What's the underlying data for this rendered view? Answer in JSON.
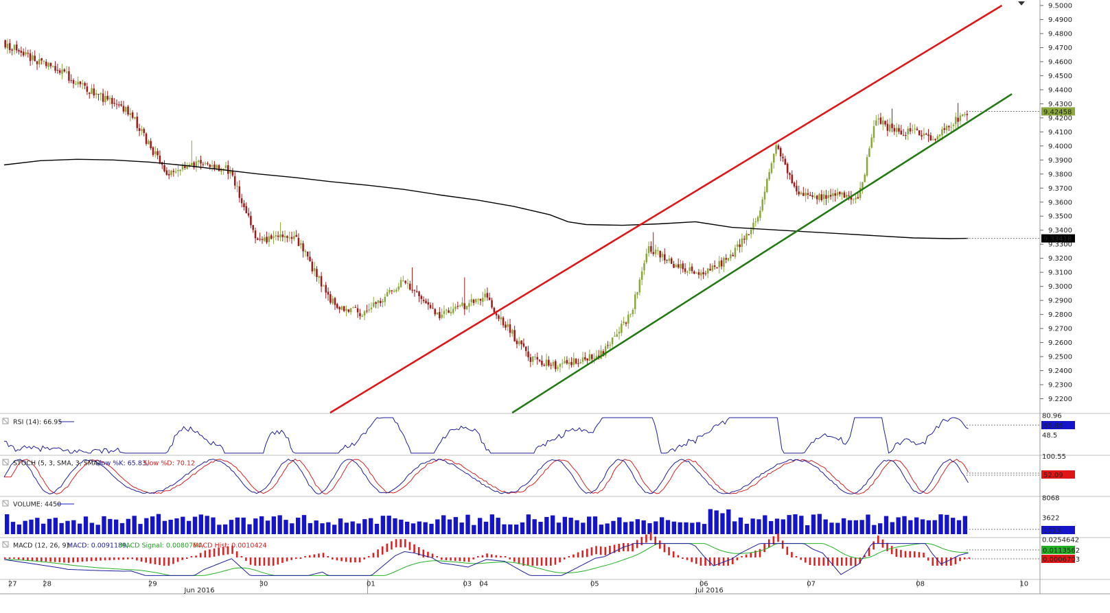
{
  "chart_data": {
    "type": "candlestick",
    "price": {
      "ylim": [
        9.21,
        9.5
      ],
      "y_ticks": [
        "9.5000",
        "9.4900",
        "9.4800",
        "9.4700",
        "9.4600",
        "9.4500",
        "9.4400",
        "9.4300",
        "9.4200",
        "9.4100",
        "9.4000",
        "9.3900",
        "9.3800",
        "9.3700",
        "9.3600",
        "9.3500",
        "9.3400",
        "9.3300",
        "9.3200",
        "9.3100",
        "9.3000",
        "9.2900",
        "9.2800",
        "9.2700",
        "9.2600",
        "9.2500",
        "9.2400",
        "9.2300",
        "9.2200"
      ],
      "current_price_label": "9.42458",
      "ma_price_label": "9.33418",
      "ma_path": [
        [
          0,
          9.3865
        ],
        [
          2,
          9.3895
        ],
        [
          4,
          9.3905
        ],
        [
          6,
          9.39
        ],
        [
          8,
          9.3885
        ],
        [
          10,
          9.386
        ],
        [
          12,
          9.383
        ],
        [
          14,
          9.38
        ],
        [
          16,
          9.3775
        ],
        [
          18,
          9.3745
        ],
        [
          20,
          9.372
        ],
        [
          22,
          9.369
        ],
        [
          24,
          9.365
        ],
        [
          26,
          9.3615
        ],
        [
          28,
          9.357
        ],
        [
          30,
          9.351
        ],
        [
          31,
          9.346
        ],
        [
          32,
          9.344
        ],
        [
          34,
          9.3435
        ],
        [
          36,
          9.3445
        ],
        [
          38,
          9.346
        ],
        [
          40,
          9.342
        ],
        [
          42,
          9.3405
        ],
        [
          44,
          9.339
        ],
        [
          46,
          9.3375
        ],
        [
          48,
          9.336
        ],
        [
          50,
          9.3345
        ],
        [
          52,
          9.334
        ],
        [
          53,
          9.3342
        ]
      ],
      "anchors": [
        [
          0,
          9.473
        ],
        [
          3,
          9.454
        ],
        [
          5,
          9.438
        ],
        [
          7,
          9.423
        ],
        [
          9,
          9.38
        ],
        [
          11,
          9.389
        ],
        [
          12.5,
          9.382
        ],
        [
          14,
          9.331
        ],
        [
          16,
          9.337
        ],
        [
          18,
          9.29
        ],
        [
          19,
          9.283
        ],
        [
          20,
          9.281
        ],
        [
          22,
          9.305
        ],
        [
          24,
          9.279
        ],
        [
          25,
          9.285
        ],
        [
          26.5,
          9.292
        ],
        [
          27.5,
          9.275
        ],
        [
          29,
          9.248
        ],
        [
          30.5,
          9.243
        ],
        [
          33,
          9.253
        ],
        [
          34.5,
          9.28
        ],
        [
          35.5,
          9.328
        ],
        [
          37,
          9.314
        ],
        [
          38.5,
          9.31
        ],
        [
          40,
          9.32
        ],
        [
          41.5,
          9.348
        ],
        [
          42.5,
          9.4
        ],
        [
          43.5,
          9.37
        ],
        [
          44.5,
          9.362
        ],
        [
          46,
          9.365
        ],
        [
          47,
          9.36
        ],
        [
          48,
          9.42
        ],
        [
          49,
          9.41
        ],
        [
          50,
          9.41
        ],
        [
          51,
          9.405
        ],
        [
          52,
          9.414
        ],
        [
          52.9,
          9.4246
        ]
      ]
    },
    "trendlines": [
      {
        "color": "#e01515",
        "from": [
          17.92,
          9.21
        ],
        "to": [
          54.85,
          9.5
        ]
      },
      {
        "color": "#207a10",
        "from": [
          27.93,
          9.21
        ],
        "to": [
          55.4,
          9.437
        ]
      }
    ],
    "x_ticks": [
      {
        "label": "27",
        "x": 0.3
      },
      {
        "label": "28",
        "x": 2.2
      },
      {
        "label": "29",
        "x": 8.0
      },
      {
        "label": "30",
        "x": 14.1
      },
      {
        "label": "01",
        "x": 20.0
      },
      {
        "label": "03",
        "x": 25.3
      },
      {
        "label": "04",
        "x": 26.2
      },
      {
        "label": "05",
        "x": 32.3
      },
      {
        "label": "06",
        "x": 38.3
      },
      {
        "label": "07",
        "x": 44.2
      },
      {
        "label": "08",
        "x": 50.2
      },
      {
        "label": "10",
        "x": 55.9
      }
    ],
    "x_month_labels": [
      {
        "label": "Jun 2016",
        "x": 9.9
      },
      {
        "label": "Jul 2016",
        "x": 38.0
      }
    ],
    "indicators": {
      "rsi": {
        "label": "RSI (14): 66.95",
        "axis_top": "80.96",
        "axis_mid": "48.5",
        "value_label": "65.86"
      },
      "stoch": {
        "label_main": "STOCH (5, 3, SMA, 3, SMA):",
        "label_k": "Slow %K: 65.83,",
        "label_d": "Slow %D: 70.12",
        "axis_top": "100.55",
        "value_label": "52.09"
      },
      "volume": {
        "label": "VOLUME: 4450",
        "axis_top": "8068",
        "axis_mid": "3622",
        "value_label": "1013"
      },
      "macd": {
        "label_main": "MACD (12, 26, 9):",
        "label_macd": "MACD: 0.0091189,",
        "label_signal": "MACD Signal: 0.0080764,",
        "label_hist": "MACD Hist: 0.0010424",
        "axis_top": "0.0254642",
        "value_label_1": "0.0113562",
        "value_label_2": "0.0006703"
      }
    },
    "colors": {
      "up": "#8aa83a",
      "down": "#a01818",
      "ma": "#000000",
      "rsi": "#1c1c9a",
      "stoch_k": "#1c1c9a",
      "stoch_d": "#d42020",
      "volume": "#1414c8",
      "macd": "#1c1c9a",
      "signal": "#20b020",
      "hist": "#e02020"
    }
  }
}
